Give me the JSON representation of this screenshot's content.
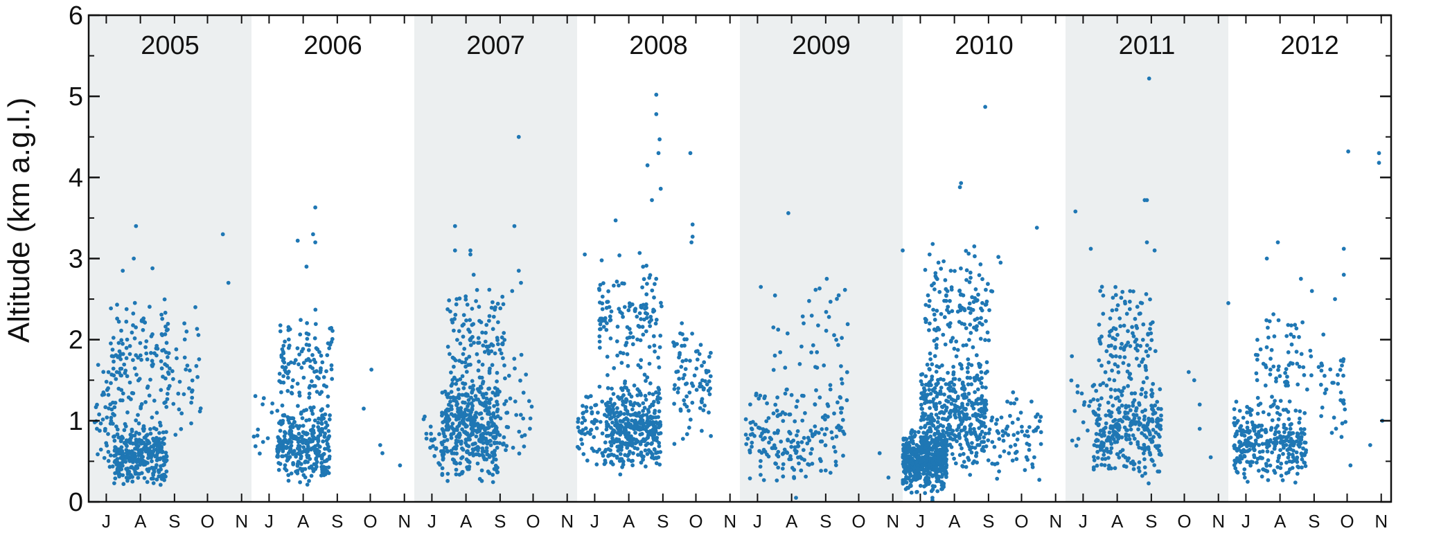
{
  "chart_data": {
    "type": "scatter",
    "title": "",
    "xlabel": "",
    "ylabel": "Altitude (km a.g.l.)",
    "ylim": [
      0,
      6
    ],
    "yticks": [
      0,
      1,
      2,
      3,
      4,
      5,
      6
    ],
    "x_month_ticks": [
      "J",
      "A",
      "S",
      "O",
      "N"
    ],
    "panel_x_range": [
      "06-15",
      "11-10"
    ],
    "grid": false,
    "point_color": "#1f77b4",
    "shade_color": "#eceff0",
    "panels": [
      {
        "year": "2005",
        "shaded": true,
        "seed": 11,
        "clusters": [
          {
            "x": [
              "06-20",
              "07-10"
            ],
            "y": [
              0.2,
              1.9
            ],
            "n": 45
          },
          {
            "x": [
              "07-08",
              "08-25"
            ],
            "y": [
              0.2,
              1.0
            ],
            "n": 320
          },
          {
            "x": [
              "07-05",
              "08-28"
            ],
            "y": [
              0.8,
              2.6
            ],
            "n": 140
          },
          {
            "x": [
              "08-25",
              "09-25"
            ],
            "y": [
              0.6,
              2.5
            ],
            "n": 35
          }
        ],
        "points": [
          [
            "07-28",
            3.4
          ],
          [
            "07-26",
            3.0
          ],
          [
            "07-16",
            2.85
          ],
          [
            "08-12",
            2.88
          ],
          [
            "10-15",
            3.3
          ],
          [
            "10-20",
            2.7
          ],
          [
            "09-10",
            2.2
          ],
          [
            "09-20",
            2.4
          ],
          [
            "09-12",
            2.1
          ]
        ]
      },
      {
        "year": "2006",
        "shaded": false,
        "seed": 23,
        "clusters": [
          {
            "x": [
              "06-17",
              "07-05"
            ],
            "y": [
              0.3,
              1.4
            ],
            "n": 12
          },
          {
            "x": [
              "07-08",
              "08-25"
            ],
            "y": [
              0.2,
              1.2
            ],
            "n": 300
          },
          {
            "x": [
              "07-10",
              "08-28"
            ],
            "y": [
              0.9,
              2.4
            ],
            "n": 120
          }
        ],
        "points": [
          [
            "08-12",
            3.63
          ],
          [
            "08-10",
            3.3
          ],
          [
            "08-12",
            3.2
          ],
          [
            "07-27",
            3.22
          ],
          [
            "08-04",
            2.9
          ],
          [
            "10-02",
            1.63
          ],
          [
            "10-10",
            0.7
          ],
          [
            "10-12",
            0.6
          ],
          [
            "09-25",
            1.15
          ],
          [
            "10-28",
            0.45
          ]
        ]
      },
      {
        "year": "2007",
        "shaded": true,
        "seed": 37,
        "clusters": [
          {
            "x": [
              "06-20",
              "07-10"
            ],
            "y": [
              0.3,
              1.2
            ],
            "n": 20
          },
          {
            "x": [
              "07-10",
              "08-30"
            ],
            "y": [
              0.2,
              1.6
            ],
            "n": 420
          },
          {
            "x": [
              "07-15",
              "09-05"
            ],
            "y": [
              1.2,
              2.8
            ],
            "n": 120
          },
          {
            "x": [
              "08-20",
              "09-30"
            ],
            "y": [
              0.5,
              2.0
            ],
            "n": 50
          }
        ],
        "points": [
          [
            "07-22",
            3.4
          ],
          [
            "07-22",
            3.1
          ],
          [
            "08-05",
            3.1
          ],
          [
            "08-05",
            3.05
          ],
          [
            "08-08",
            2.8
          ],
          [
            "09-14",
            3.4
          ],
          [
            "09-18",
            4.5
          ],
          [
            "09-18",
            2.85
          ],
          [
            "09-20",
            2.7
          ],
          [
            "09-12",
            2.6
          ]
        ]
      },
      {
        "year": "2008",
        "shaded": false,
        "seed": 41,
        "clusters": [
          {
            "x": [
              "06-15",
              "07-10"
            ],
            "y": [
              0.3,
              1.5
            ],
            "n": 55
          },
          {
            "x": [
              "07-10",
              "08-30"
            ],
            "y": [
              0.3,
              1.5
            ],
            "n": 380
          },
          {
            "x": [
              "07-05",
              "09-01"
            ],
            "y": [
              1.2,
              3.2
            ],
            "n": 140
          },
          {
            "x": [
              "09-10",
              "10-15"
            ],
            "y": [
              0.6,
              2.4
            ],
            "n": 85
          }
        ],
        "points": [
          [
            "08-26",
            5.02
          ],
          [
            "08-26",
            4.78
          ],
          [
            "08-29",
            4.47
          ],
          [
            "08-28",
            4.3
          ],
          [
            "08-18",
            4.15
          ],
          [
            "08-30",
            3.86
          ],
          [
            "08-22",
            3.72
          ],
          [
            "09-26",
            4.3
          ],
          [
            "09-28",
            3.42
          ],
          [
            "09-28",
            3.27
          ],
          [
            "09-27",
            3.2
          ],
          [
            "07-20",
            3.47
          ],
          [
            "06-22",
            3.05
          ]
        ]
      },
      {
        "year": "2009",
        "shaded": true,
        "seed": 53,
        "clusters": [
          {
            "x": [
              "06-20",
              "09-20"
            ],
            "y": [
              0.2,
              1.4
            ],
            "n": 190
          },
          {
            "x": [
              "07-15",
              "09-25"
            ],
            "y": [
              1.2,
              2.8
            ],
            "n": 45
          }
        ],
        "points": [
          [
            "07-29",
            3.56
          ],
          [
            "07-04",
            2.65
          ],
          [
            "09-02",
            2.75
          ],
          [
            "09-15",
            1.1
          ],
          [
            "08-05",
            0.05
          ],
          [
            "10-20",
            0.6
          ],
          [
            "10-28",
            0.3
          ]
        ]
      },
      {
        "year": "2010",
        "shaded": false,
        "seed": 67,
        "clusters": [
          {
            "x": [
              "06-15",
              "07-25"
            ],
            "y": [
              0.1,
              0.9
            ],
            "n": 520
          },
          {
            "x": [
              "07-01",
              "08-30"
            ],
            "y": [
              0.3,
              1.8
            ],
            "n": 420
          },
          {
            "x": [
              "07-05",
              "09-05"
            ],
            "y": [
              1.5,
              3.3
            ],
            "n": 150
          },
          {
            "x": [
              "08-25",
              "10-20"
            ],
            "y": [
              0.2,
              1.4
            ],
            "n": 80
          }
        ],
        "points": [
          [
            "08-07",
            3.93
          ],
          [
            "08-06",
            3.88
          ],
          [
            "08-29",
            4.87
          ],
          [
            "10-15",
            3.38
          ],
          [
            "09-12",
            2.95
          ],
          [
            "09-10",
            3.02
          ],
          [
            "06-15",
            3.1
          ],
          [
            "07-12",
            0.02
          ],
          [
            "07-12",
            0.05
          ]
        ]
      },
      {
        "year": "2011",
        "shaded": true,
        "seed": 79,
        "clusters": [
          {
            "x": [
              "06-20",
              "07-15"
            ],
            "y": [
              0.4,
              2.0
            ],
            "n": 22
          },
          {
            "x": [
              "07-10",
              "09-10"
            ],
            "y": [
              0.2,
              1.6
            ],
            "n": 300
          },
          {
            "x": [
              "07-15",
              "09-05"
            ],
            "y": [
              1.3,
              2.8
            ],
            "n": 110
          }
        ],
        "points": [
          [
            "08-30",
            5.22
          ],
          [
            "08-26",
            3.72
          ],
          [
            "08-28",
            3.72
          ],
          [
            "06-24",
            3.58
          ],
          [
            "07-08",
            3.12
          ],
          [
            "09-04",
            3.1
          ],
          [
            "08-28",
            3.2
          ],
          [
            "10-05",
            1.6
          ],
          [
            "10-10",
            1.5
          ],
          [
            "10-15",
            1.2
          ],
          [
            "10-15",
            0.9
          ],
          [
            "11-10",
            2.45
          ],
          [
            "10-25",
            0.55
          ]
        ]
      },
      {
        "year": "2012",
        "shaded": false,
        "seed": 89,
        "clusters": [
          {
            "x": [
              "06-20",
              "08-25"
            ],
            "y": [
              0.2,
              1.3
            ],
            "n": 300
          },
          {
            "x": [
              "07-10",
              "08-30"
            ],
            "y": [
              1.0,
              2.4
            ],
            "n": 70
          },
          {
            "x": [
              "09-05",
              "10-01"
            ],
            "y": [
              0.6,
              2.2
            ],
            "n": 35
          }
        ],
        "points": [
          [
            "10-02",
            4.32
          ],
          [
            "10-30",
            4.3
          ],
          [
            "10-30",
            4.18
          ],
          [
            "07-30",
            3.2
          ],
          [
            "07-20",
            3.0
          ],
          [
            "08-20",
            2.75
          ],
          [
            "08-30",
            2.6
          ],
          [
            "09-28",
            3.12
          ],
          [
            "09-28",
            2.8
          ],
          [
            "09-20",
            2.5
          ],
          [
            "11-02",
            1.0
          ],
          [
            "10-22",
            0.7
          ],
          [
            "10-04",
            0.45
          ],
          [
            "06-30",
            0.3
          ]
        ]
      }
    ]
  }
}
